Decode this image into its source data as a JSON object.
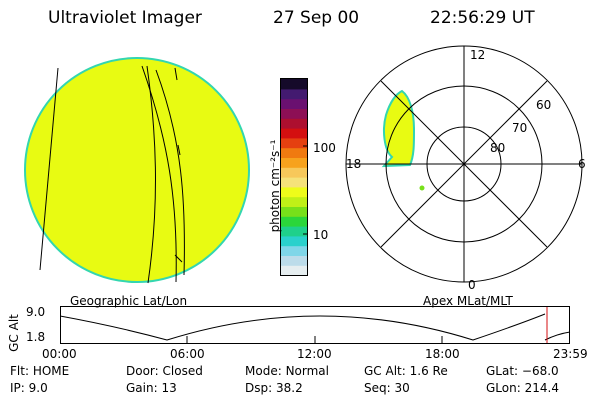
{
  "header": {
    "title": "Ultraviolet Imager",
    "date": "27 Sep 00",
    "time": "22:56:29 UT"
  },
  "image_panel": {
    "label": "Geographic Lat/Lon",
    "fill_color": "#e8fb12",
    "edge_color": "#33d6b0"
  },
  "colorbar": {
    "unit": "photon cm⁻²s⁻¹",
    "ticks": [
      "100",
      "10"
    ],
    "colors": [
      "#e6eef0",
      "#bcdcea",
      "#7fd6e8",
      "#2ad1cc",
      "#1fd08b",
      "#2bd63a",
      "#77e01a",
      "#bff017",
      "#eefc1a",
      "#f5e27a",
      "#f7c85a",
      "#f7a21d",
      "#f07a10",
      "#e54010",
      "#d40f10",
      "#ad0f2f",
      "#8d0f55",
      "#6a1070",
      "#431a70",
      "#150a2a"
    ]
  },
  "polar_panel": {
    "label": "Apex MLat/MLT",
    "mlt_labels": {
      "top": "12",
      "left": "18",
      "right": "6",
      "bottom": "0"
    },
    "lat_labels": [
      "60",
      "70",
      "80"
    ],
    "aurora_color": "#e8fb12"
  },
  "timeline": {
    "ylabel": "GC Alt",
    "ymax": "9.0",
    "ymin": "1.8",
    "ticks": [
      "00:00",
      "06:00",
      "12:00",
      "18:00",
      "23:59"
    ],
    "marker_color": "#d40f10"
  },
  "footer": [
    [
      {
        "key": "Flt:",
        "val": "HOME"
      },
      {
        "key": "Door:",
        "val": "Closed"
      },
      {
        "key": "Mode:",
        "val": "Normal"
      },
      {
        "key": "GC Alt:",
        "val": "1.6 Re"
      },
      {
        "key": "GLat:",
        "val": "−68.0"
      }
    ],
    [
      {
        "key": "IP:",
        "val": "9.0"
      },
      {
        "key": "Gain:",
        "val": "13"
      },
      {
        "key": "Dsp:",
        "val": "38.2"
      },
      {
        "key": "Seq:",
        "val": "30"
      },
      {
        "key": "GLon:",
        "val": "214.4"
      }
    ]
  ]
}
